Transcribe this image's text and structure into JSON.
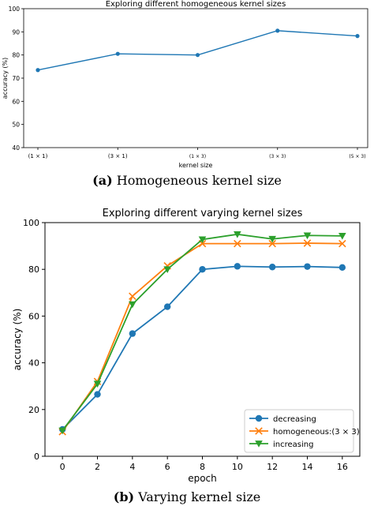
{
  "caption_a": {
    "label": "(a)",
    "text": "Homogeneous kernel size"
  },
  "caption_b": {
    "label": "(b)",
    "text": "Varying kernel size"
  },
  "chart_data": [
    {
      "type": "line",
      "title": "Exploring different homogeneous kernel sizes",
      "xlabel": "kernel size",
      "ylabel": "accuracy (%)",
      "categories": [
        "(1 × 1)",
        "(3 × 1)",
        "(1 × 3)",
        "(3 × 3)",
        "(5 × 3)"
      ],
      "series": [
        {
          "values": [
            73.5,
            80.5,
            80.0,
            90.5,
            88.2
          ],
          "color": "#1f77b4"
        }
      ],
      "ylim": [
        40,
        100
      ],
      "yticks": [
        40,
        50,
        60,
        70,
        80,
        90,
        100
      ],
      "grid": false
    },
    {
      "type": "line",
      "title": "Exploring different varying kernel sizes",
      "xlabel": "epoch",
      "ylabel": "accuracy (%)",
      "x": [
        0,
        2,
        4,
        6,
        8,
        10,
        12,
        14,
        16
      ],
      "xlim": [
        -1,
        17
      ],
      "ylim": [
        0,
        100
      ],
      "xticks": [
        0,
        2,
        4,
        6,
        8,
        10,
        12,
        14,
        16
      ],
      "yticks": [
        0,
        20,
        40,
        60,
        80,
        100
      ],
      "legend_position": "bottom-right",
      "grid": false,
      "series": [
        {
          "name": "decreasing",
          "marker": "circle",
          "color": "#1f77b4",
          "values": [
            11.5,
            26.5,
            52.5,
            64.0,
            80.0,
            81.3,
            81.0,
            81.2,
            80.8
          ]
        },
        {
          "name": "homogeneous:(3 × 3)",
          "marker": "x",
          "color": "#ff7f0e",
          "values": [
            10.5,
            32.0,
            68.5,
            81.5,
            91.0,
            91.0,
            91.0,
            91.2,
            91.0
          ]
        },
        {
          "name": "increasing",
          "marker": "triangle-down",
          "color": "#2ca02c",
          "values": [
            11.0,
            31.0,
            65.0,
            80.0,
            92.8,
            95.0,
            93.0,
            94.5,
            94.3
          ]
        }
      ]
    }
  ]
}
